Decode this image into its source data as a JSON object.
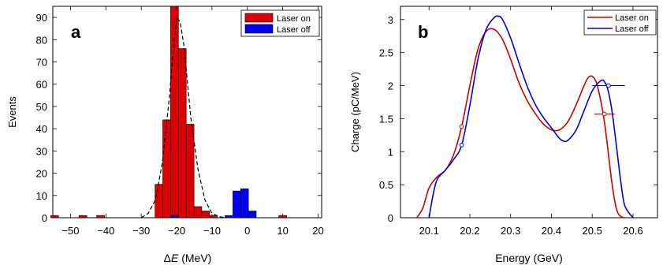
{
  "chart_data": [
    {
      "panel_label": "a",
      "type": "bar",
      "xlabel_prefix": "Δ",
      "xlabel_var": "E",
      "xlabel_unit": " (MeV)",
      "ylabel": "Events",
      "xlim": [
        -55,
        21
      ],
      "ylim": [
        0,
        95
      ],
      "xticks": [
        -50,
        -40,
        -30,
        -20,
        -10,
        0,
        10,
        20
      ],
      "yticks": [
        0,
        10,
        20,
        30,
        40,
        50,
        60,
        70,
        80,
        90
      ],
      "bin_width": 2.2,
      "legend_position": "top-right",
      "series": [
        {
          "name": "Laser on",
          "color": "#dd0000",
          "x": [
            -54.5,
            -46.5,
            -41.5,
            -25,
            -22.8,
            -20.6,
            -18.4,
            -16.2,
            -14,
            -11.8,
            -9.6,
            10
          ],
          "values": [
            1,
            1,
            1,
            15,
            44,
            95,
            76,
            42,
            5,
            3,
            1,
            1
          ]
        },
        {
          "name": "Laser off",
          "color": "#0000ee",
          "x": [
            -20.6,
            -5.2,
            -3,
            -0.8,
            1.4,
            3.6
          ],
          "values": [
            1,
            1,
            12,
            13,
            3,
            0
          ]
        }
      ],
      "fit_curve": {
        "style": "dashed",
        "color": "#000000",
        "x": [
          -30,
          -28,
          -26,
          -24,
          -22,
          -21,
          -20,
          -19,
          -18,
          -17,
          -16,
          -14,
          -12,
          -10,
          -8,
          -6
        ],
        "y": [
          0,
          2,
          8,
          25,
          55,
          75,
          90,
          88,
          78,
          62,
          45,
          22,
          8,
          2,
          0.5,
          0
        ]
      }
    },
    {
      "panel_label": "b",
      "type": "line",
      "xlabel": "Energy (GeV)",
      "ylabel": "Charge (pC/MeV)",
      "xlim": [
        20.03,
        20.66
      ],
      "ylim": [
        0,
        3.2
      ],
      "xticks": [
        20.1,
        20.2,
        20.3,
        20.4,
        20.5,
        20.6
      ],
      "yticks": [
        0,
        0.5,
        1,
        1.5,
        2,
        2.5,
        3
      ],
      "legend_position": "top-right",
      "series": [
        {
          "name": "Laser on",
          "color": "#cc0000",
          "x": [
            20.07,
            20.085,
            20.1,
            20.12,
            20.14,
            20.16,
            20.18,
            20.2,
            20.22,
            20.24,
            20.26,
            20.28,
            20.3,
            20.32,
            20.34,
            20.36,
            20.38,
            20.4,
            20.42,
            20.44,
            20.46,
            20.48,
            20.49,
            20.5,
            20.51,
            20.52,
            20.53,
            20.54,
            20.55,
            20.56,
            20.57,
            20.58
          ],
          "y": [
            0,
            0.15,
            0.45,
            0.62,
            0.72,
            0.95,
            1.38,
            2.0,
            2.55,
            2.82,
            2.85,
            2.7,
            2.4,
            2.05,
            1.78,
            1.58,
            1.42,
            1.33,
            1.33,
            1.45,
            1.7,
            2.0,
            2.12,
            2.14,
            2.05,
            1.8,
            1.45,
            0.95,
            0.45,
            0.12,
            0.02,
            0
          ]
        },
        {
          "name": "Laser off",
          "color": "#0000dd",
          "x": [
            20.1,
            20.11,
            20.12,
            20.14,
            20.16,
            20.18,
            20.2,
            20.22,
            20.24,
            20.26,
            20.27,
            20.28,
            20.3,
            20.32,
            20.34,
            20.36,
            20.38,
            20.4,
            20.42,
            20.43,
            20.44,
            20.46,
            20.48,
            20.5,
            20.52,
            20.53,
            20.54,
            20.55,
            20.56,
            20.57,
            20.58,
            20.6
          ],
          "y": [
            0,
            0.35,
            0.58,
            0.72,
            0.88,
            1.1,
            1.7,
            2.4,
            2.85,
            3.03,
            3.05,
            3.0,
            2.72,
            2.35,
            2.0,
            1.72,
            1.52,
            1.36,
            1.2,
            1.16,
            1.17,
            1.32,
            1.62,
            1.92,
            2.07,
            2.06,
            1.9,
            1.55,
            1.05,
            0.55,
            0.18,
            0
          ]
        }
      ],
      "error_bars": [
        {
          "series": "Laser on",
          "x": 20.18,
          "y": 1.38,
          "xerr": 0.006
        },
        {
          "series": "Laser on",
          "x": 20.53,
          "y": 1.57,
          "xerr": 0.025
        },
        {
          "series": "Laser off",
          "x": 20.18,
          "y": 1.1,
          "xerr": 0.003
        },
        {
          "series": "Laser off",
          "x": 20.54,
          "y": 2.0,
          "xerr": 0.04
        }
      ]
    }
  ]
}
